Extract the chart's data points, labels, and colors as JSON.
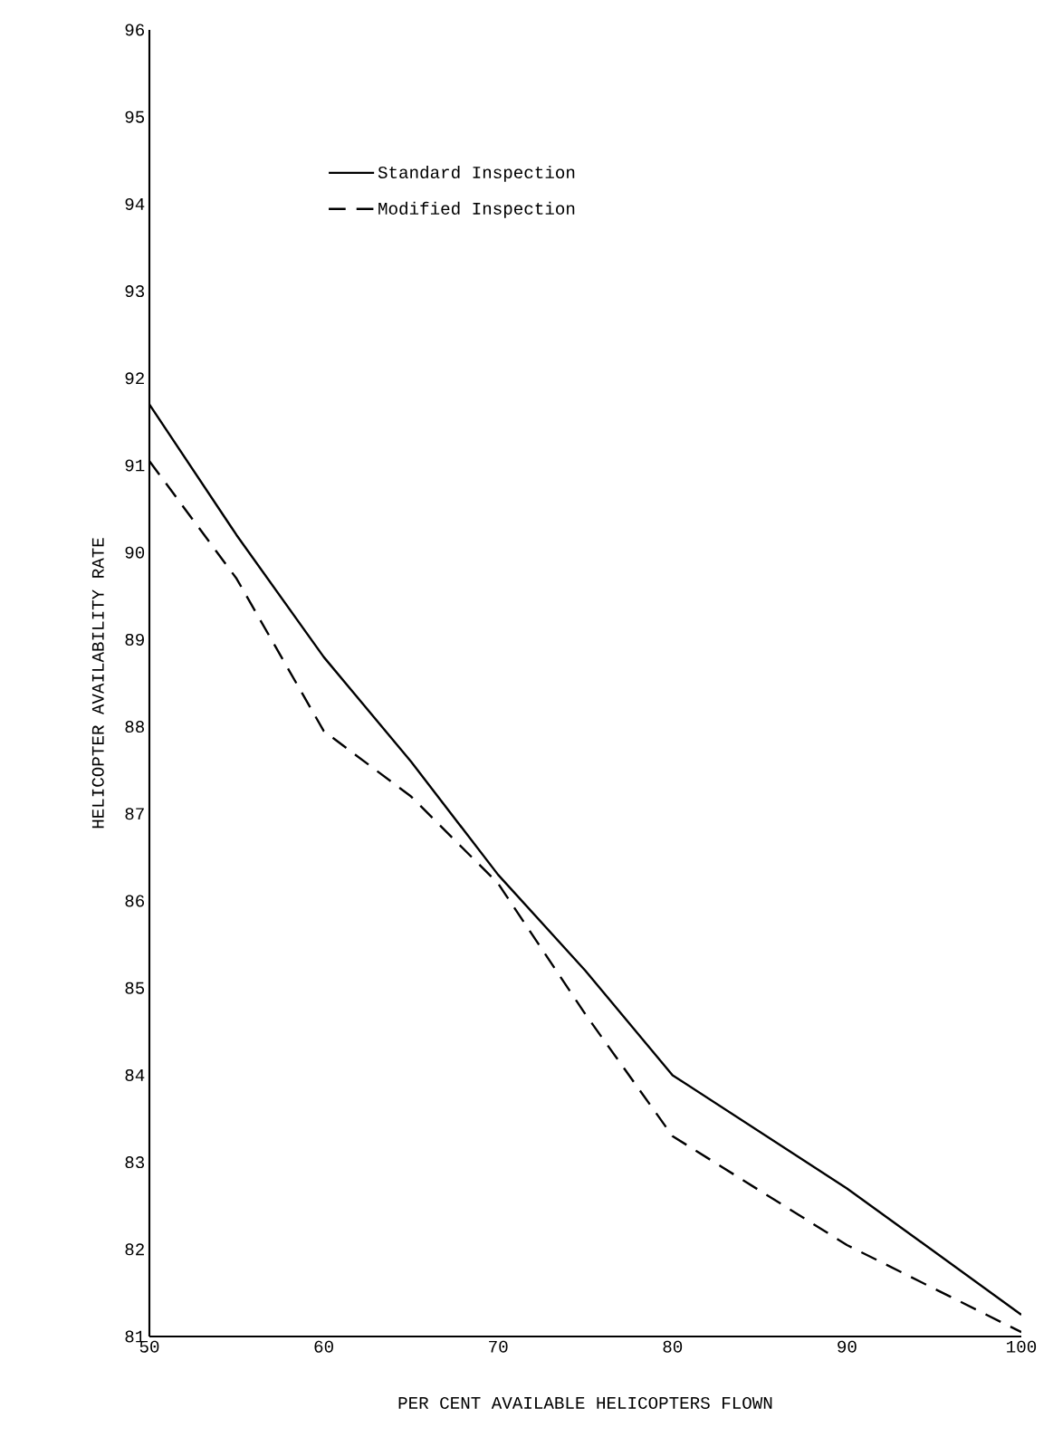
{
  "chart_data": {
    "type": "line",
    "xlabel": "PER CENT AVAILABLE HELICOPTERS FLOWN",
    "ylabel": "HELICOPTER AVAILABILITY RATE",
    "x": [
      50,
      55,
      60,
      65,
      70,
      75,
      80,
      90,
      100
    ],
    "series": [
      {
        "name": "Standard Inspection",
        "color": "#000000",
        "line_style": "solid",
        "values": [
          91.7,
          90.2,
          88.8,
          87.6,
          86.3,
          85.2,
          84.0,
          82.7,
          81.25
        ]
      },
      {
        "name": "Modified Inspection",
        "color": "#000000",
        "line_style": "dashed",
        "values": [
          91.05,
          89.7,
          87.95,
          87.2,
          86.2,
          84.7,
          83.3,
          82.05,
          81.05
        ]
      }
    ],
    "xlim": [
      50,
      100
    ],
    "ylim": [
      81,
      96
    ],
    "xticks": [
      50,
      60,
      70,
      80,
      90,
      100
    ],
    "yticks": [
      81,
      82,
      83,
      84,
      85,
      86,
      87,
      88,
      89,
      90,
      91,
      92,
      93,
      94,
      95,
      96
    ],
    "legend": "top"
  }
}
